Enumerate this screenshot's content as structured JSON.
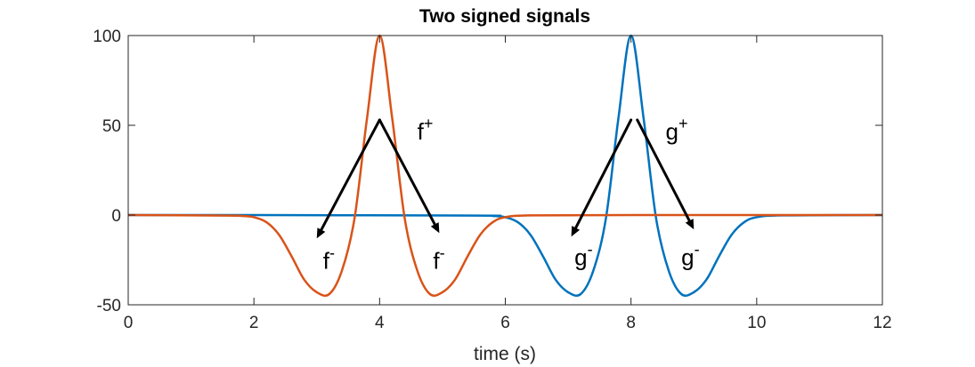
{
  "chart_data": {
    "type": "line",
    "title": "Two signed signals",
    "xlabel": "time (s)",
    "ylabel": "",
    "xlim": [
      0,
      12
    ],
    "ylim": [
      -50,
      100
    ],
    "x_ticks": [
      0,
      2,
      4,
      6,
      8,
      10,
      12
    ],
    "y_ticks": [
      -50,
      0,
      50,
      100
    ],
    "x_tick_labels": [
      "0",
      "2",
      "4",
      "6",
      "8",
      "10",
      "12"
    ],
    "y_tick_labels": [
      "-50",
      "0",
      "50",
      "100"
    ],
    "grid": false,
    "box": true,
    "series": [
      {
        "color": "#0072BD",
        "x": [
          0,
          1.5,
          2,
          5.6,
          5.8,
          6,
          6.2,
          6.4,
          6.6,
          6.8,
          7,
          7.2,
          7.4,
          7.6,
          7.8,
          8,
          8.2,
          8.4,
          8.6,
          8.8,
          9,
          9.2,
          9.4,
          9.6,
          9.8,
          10,
          10.4,
          12
        ],
        "y": [
          0,
          0,
          0,
          -0.3,
          -0.5,
          -1.2,
          -4,
          -11,
          -23,
          -36,
          -43,
          -44,
          -31,
          -2,
          54,
          100,
          54,
          -2,
          -31,
          -44,
          -43,
          -36,
          -23,
          -11,
          -4,
          -1.2,
          -0.2,
          0
        ]
      },
      {
        "color": "#D95319",
        "x": [
          0,
          1.6,
          1.8,
          2,
          2.2,
          2.4,
          2.6,
          2.8,
          3,
          3.2,
          3.4,
          3.6,
          3.8,
          4,
          4.2,
          4.4,
          4.6,
          4.8,
          5,
          5.2,
          5.4,
          5.6,
          5.8,
          6,
          6.4,
          8,
          12
        ],
        "y": [
          0,
          -0.3,
          -0.5,
          -1.2,
          -4,
          -11,
          -23,
          -36,
          -43,
          -44,
          -31,
          -2,
          54,
          100,
          54,
          -2,
          -31,
          -44,
          -43,
          -36,
          -23,
          -11,
          -4,
          -1.2,
          -0.2,
          0,
          0
        ]
      }
    ],
    "annotations": [
      {
        "type": "arrow",
        "from": [
          4,
          53
        ],
        "to": [
          3,
          -13
        ]
      },
      {
        "type": "arrow",
        "from": [
          4,
          53
        ],
        "to": [
          4.95,
          -10
        ]
      },
      {
        "type": "arrow",
        "from": [
          8,
          53
        ],
        "to": [
          7.05,
          -12
        ]
      },
      {
        "type": "arrow",
        "from": [
          8.1,
          53
        ],
        "to": [
          9.0,
          -8
        ]
      },
      {
        "type": "text",
        "base": "f",
        "sup": "+",
        "x": 4.6,
        "y": 42
      },
      {
        "type": "text",
        "base": "f",
        "sup": "-",
        "x": 3.1,
        "y": -30
      },
      {
        "type": "text",
        "base": "f",
        "sup": "-",
        "x": 4.85,
        "y": -30
      },
      {
        "type": "text",
        "base": "g",
        "sup": "+",
        "x": 8.55,
        "y": 42
      },
      {
        "type": "text",
        "base": "g",
        "sup": "-",
        "x": 7.1,
        "y": -28
      },
      {
        "type": "text",
        "base": "g",
        "sup": "-",
        "x": 8.8,
        "y": -28
      }
    ]
  }
}
